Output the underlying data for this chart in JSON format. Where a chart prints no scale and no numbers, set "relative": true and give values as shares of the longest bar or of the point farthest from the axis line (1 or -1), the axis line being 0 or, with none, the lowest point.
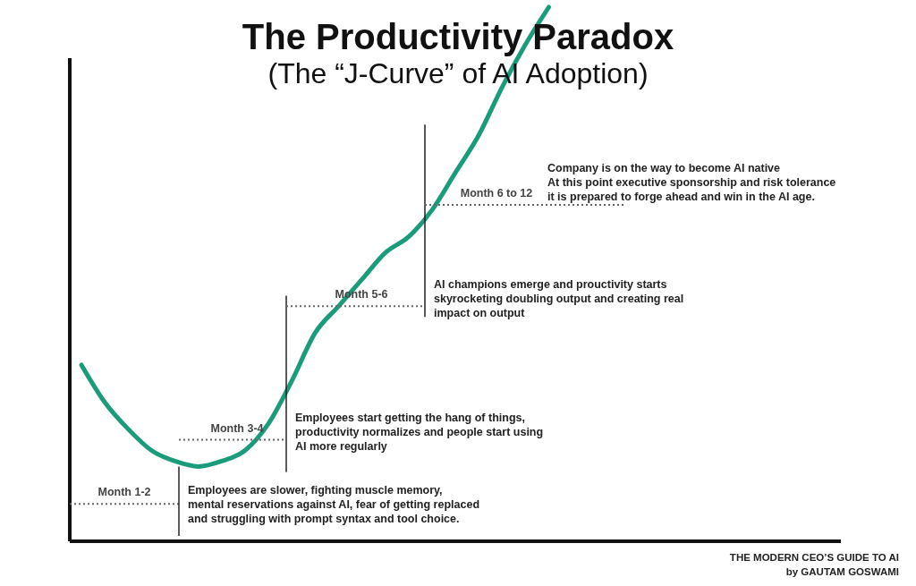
{
  "chart_data": {
    "type": "line",
    "title": "The Productivity Paradox",
    "subtitle": "(The “J-Curve” of AI Adoption)",
    "categories": [
      null,
      null,
      null,
      null,
      null,
      null,
      null,
      null,
      null,
      null,
      null,
      null,
      null,
      null,
      null,
      null,
      null,
      null,
      null,
      null,
      null,
      null,
      null,
      null,
      null,
      null,
      null,
      null,
      null,
      null,
      null,
      null,
      null
    ],
    "series": [
      {
        "color": "#1a9c7b",
        "values": [
          0.33,
          0.26,
          0.21,
          0.17,
          0.15,
          0.14,
          0.15,
          0.17,
          0.22,
          0.3,
          0.39,
          0.44,
          0.49,
          0.54,
          0.57,
          0.62,
          0.69,
          0.76,
          0.85,
          0.93,
          1,
          null,
          null,
          null,
          null,
          null,
          null,
          null,
          null,
          null,
          null,
          null,
          null
        ]
      }
    ],
    "relative": true,
    "line_style": "solid",
    "ref_lines": [
      {
        "axis": "y",
        "value": 0.07,
        "label": "Month 1-2",
        "line_style": "dotted"
      },
      {
        "axis": "y",
        "value": 0.19,
        "label": "Month 3-4",
        "line_style": "dotted"
      },
      {
        "axis": "y",
        "value": 0.44,
        "label": "Month 5-6",
        "line_style": "dotted"
      },
      {
        "axis": "y",
        "value": 0.63,
        "label": "Month 6 to 12",
        "line_style": "dotted"
      }
    ],
    "annotations": [
      "Employees are slower, fighting muscle memory,\nmental reservations against AI, fear of getting replaced\nand struggling with prompt syntax and tool choice.",
      "Employees start getting the hang of things,\nproductivity normalizes and people start using\nAI more regularly",
      "AI champions emerge and prouctivity starts\nskyrocketing doubling output and creating real\nimpact on output",
      "Company is on the way to become AI native\nAt this point executive sponsorship and risk tolerance\nit is prepared to forge ahead and win in the AI age.",
      "THE MODERN CEO’S GUIDE TO AI\nby GAUTAM GOSWAMI"
    ]
  }
}
